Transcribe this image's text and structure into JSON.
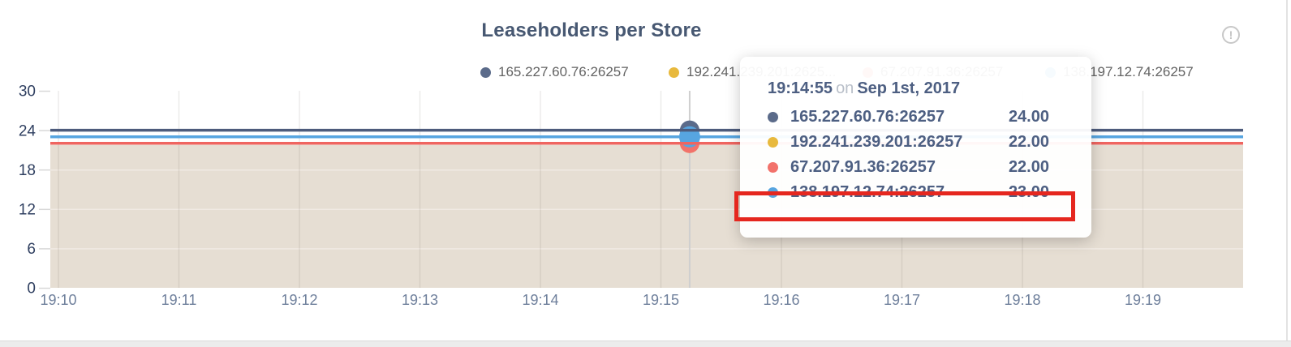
{
  "card": {
    "title": "Leaseholders per Store",
    "info_icon_glyph": "!"
  },
  "legend": {
    "items": [
      {
        "label": "165.227.60.76:26257",
        "color": "#5b6b8a"
      },
      {
        "label": "192.241.239.201:2625...",
        "color": "#e8b93d"
      },
      {
        "label": "67.207.91.36:26257",
        "color": "#f2726b"
      },
      {
        "label": "138.197.12.74:26257",
        "color": "#57a5e0"
      }
    ]
  },
  "tooltip": {
    "time": "19:14:55",
    "separator": "on",
    "date": "Sep 1st, 2017",
    "rows": [
      {
        "label": "165.227.60.76:26257",
        "value": "24.00",
        "color": "#5b6b8a"
      },
      {
        "label": "192.241.239.201:26257",
        "value": "22.00",
        "color": "#e8b93d"
      },
      {
        "label": "67.207.91.36:26257",
        "value": "22.00",
        "color": "#f2726b"
      },
      {
        "label": "138.197.12.74:26257",
        "value": "23.00",
        "color": "#57a5e0"
      }
    ],
    "highlighted_row_index": 3,
    "highlight_color": "#e5271f"
  },
  "chart_data": {
    "type": "line",
    "title": "Leaseholders per Store",
    "x_ticks": [
      "19:10",
      "19:11",
      "19:12",
      "19:13",
      "19:14",
      "19:15",
      "19:16",
      "19:17",
      "19:18",
      "19:19"
    ],
    "y_ticks": [
      0,
      6,
      12,
      18,
      24,
      30
    ],
    "ylim": [
      0,
      30
    ],
    "xlabel": "",
    "ylabel": "",
    "grid": true,
    "legend_position": "top",
    "area_fill_color": "#e6ded3",
    "series": [
      {
        "name": "165.227.60.76:26257",
        "value_constant": 24,
        "line_color": "#4d5b7c",
        "dot_color": "#5b6b8a"
      },
      {
        "name": "192.241.239.201:26257",
        "value_constant": 22,
        "line_color": "#e8b93d",
        "dot_color": "#e8b93d"
      },
      {
        "name": "67.207.91.36:26257",
        "value_constant": 22,
        "line_color": "#ef6560",
        "dot_color": "#f2726b"
      },
      {
        "name": "138.197.12.74:26257",
        "value_constant": 23,
        "line_color": "#57a5e0",
        "dot_color": "#57a5e0"
      }
    ],
    "hover_point": {
      "time": "19:14:55",
      "date": "Sep 1st, 2017",
      "x_fraction": 0.536,
      "values": [
        24,
        22,
        22,
        23
      ],
      "highlighted_series_index": 3
    }
  }
}
